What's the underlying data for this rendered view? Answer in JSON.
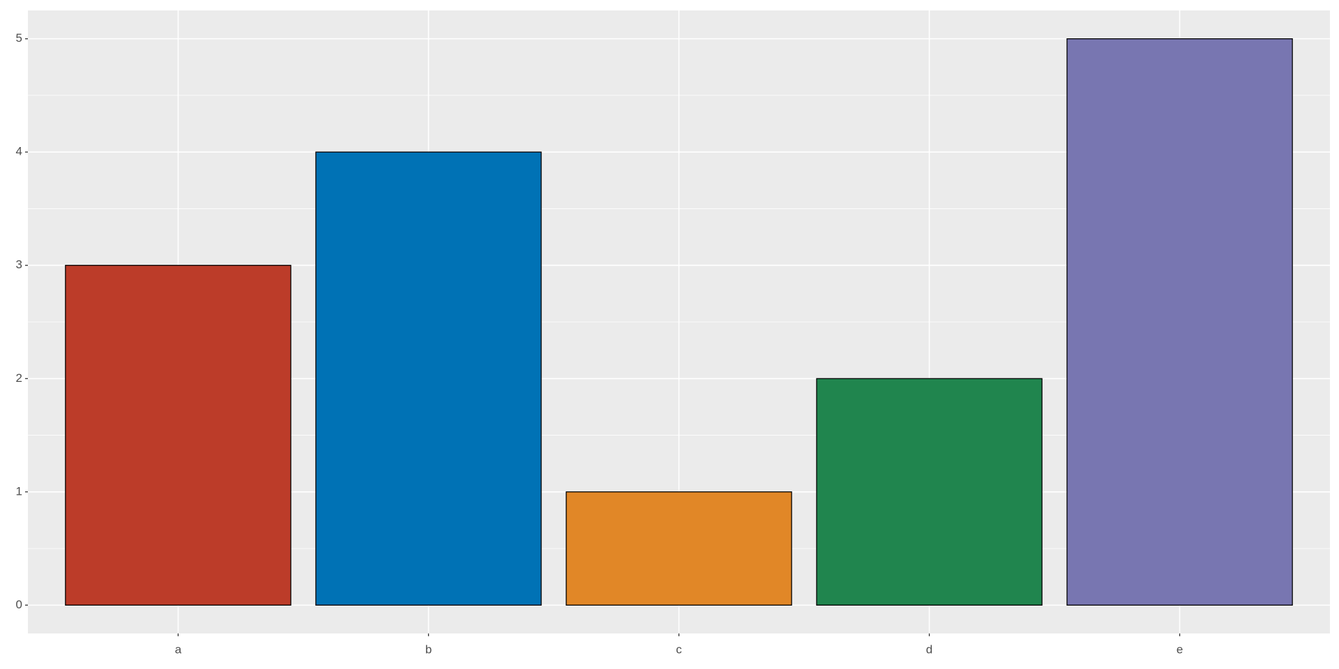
{
  "chart_data": {
    "type": "bar",
    "categories": [
      "a",
      "b",
      "c",
      "d",
      "e"
    ],
    "values": [
      3,
      4,
      1,
      2,
      5
    ],
    "colors": [
      "#BC3C29",
      "#0072B5",
      "#E18727",
      "#20854E",
      "#7876B1"
    ],
    "ylim": [
      -0.25,
      5.25
    ],
    "yticks": [
      0,
      1,
      2,
      3,
      4,
      5
    ],
    "grid": true
  }
}
